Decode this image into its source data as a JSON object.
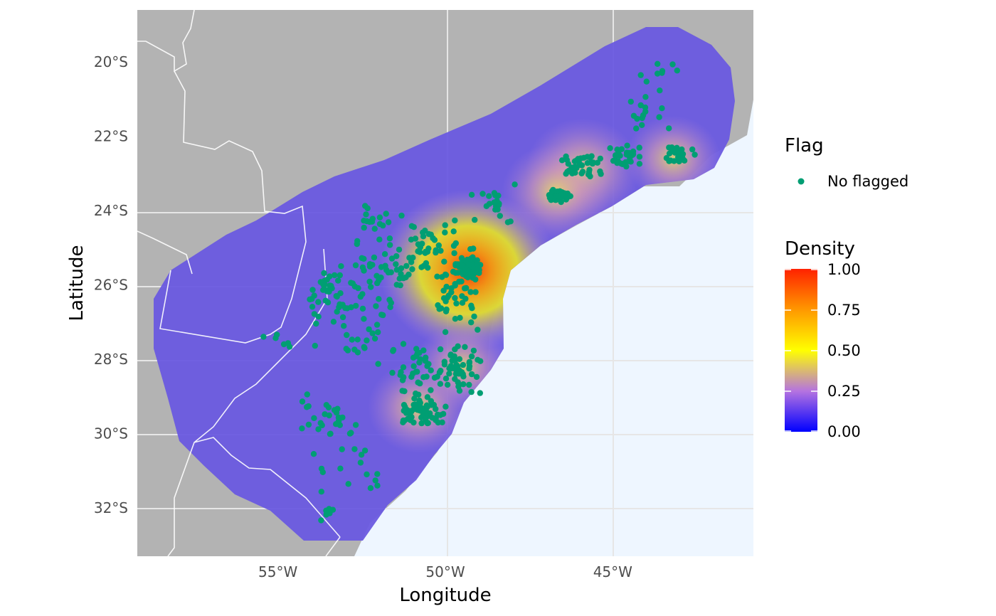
{
  "chart_data": {
    "type": "scatter",
    "xlabel": "Longitude",
    "ylabel": "Latitude",
    "x_ticks": [
      {
        "value": -55,
        "label": "55°W"
      },
      {
        "value": -50,
        "label": "50°W"
      },
      {
        "value": -45,
        "label": "45°W"
      }
    ],
    "y_ticks": [
      {
        "value": -20,
        "label": "20°S"
      },
      {
        "value": -22,
        "label": "22°S"
      },
      {
        "value": -24,
        "label": "24°S"
      },
      {
        "value": -26,
        "label": "26°S"
      },
      {
        "value": -28,
        "label": "28°S"
      },
      {
        "value": -30,
        "label": "30°S"
      },
      {
        "value": -32,
        "label": "32°S"
      }
    ],
    "xlim": [
      -59.2,
      -40.8
    ],
    "ylim": [
      -33.3,
      -18.6
    ],
    "legend_flag": {
      "title": "Flag",
      "entries": [
        {
          "label": "No flagged",
          "color": "#009E73"
        }
      ]
    },
    "legend_density": {
      "title": "Density",
      "ticks": [
        "1.00",
        "0.75",
        "0.50",
        "0.25",
        "0.00"
      ],
      "stops": [
        {
          "value": 0.0,
          "color": "#0000ff"
        },
        {
          "value": 0.25,
          "color": "#b573e0"
        },
        {
          "value": 0.5,
          "color": "#ffff00"
        },
        {
          "value": 0.75,
          "color": "#ff9800"
        },
        {
          "value": 1.0,
          "color": "#ff2200"
        }
      ]
    },
    "colors": {
      "land": "#b3b3b3",
      "ocean": "#eef6ff",
      "points": "#009E73",
      "borders": "#ffffff",
      "density_base": "#5b5be0"
    },
    "density_hotspots": [
      {
        "lon": -49.3,
        "lat": -25.6,
        "value": 0.95
      },
      {
        "lon": -50.8,
        "lat": -29.3,
        "value": 0.35
      },
      {
        "lon": -45.9,
        "lat": -22.9,
        "value": 0.45
      },
      {
        "lon": -46.7,
        "lat": -23.5,
        "value": 0.4
      },
      {
        "lon": -43.2,
        "lat": -22.6,
        "value": 0.3
      },
      {
        "lon": -49.5,
        "lat": -28.2,
        "value": 0.3
      }
    ],
    "point_clusters": [
      {
        "lon": -49.3,
        "lat": -25.55,
        "n": 120,
        "spread_lon": 0.25,
        "spread_lat": 0.2
      },
      {
        "lon": -49.6,
        "lat": -26.3,
        "n": 40,
        "spread_lon": 0.6,
        "spread_lat": 0.7
      },
      {
        "lon": -50.3,
        "lat": -25.0,
        "n": 40,
        "spread_lon": 0.9,
        "spread_lat": 0.5
      },
      {
        "lon": -50.7,
        "lat": -29.4,
        "n": 60,
        "spread_lon": 0.6,
        "spread_lat": 0.35
      },
      {
        "lon": -49.6,
        "lat": -28.3,
        "n": 45,
        "spread_lon": 0.5,
        "spread_lat": 0.5
      },
      {
        "lon": -50.9,
        "lat": -28.3,
        "n": 40,
        "spread_lon": 0.8,
        "spread_lat": 0.6
      },
      {
        "lon": -51.5,
        "lat": -25.6,
        "n": 40,
        "spread_lon": 1.0,
        "spread_lat": 0.4
      },
      {
        "lon": -52.5,
        "lat": -27.0,
        "n": 40,
        "spread_lon": 1.0,
        "spread_lat": 0.9
      },
      {
        "lon": -53.5,
        "lat": -26.2,
        "n": 40,
        "spread_lon": 0.6,
        "spread_lat": 0.6
      },
      {
        "lon": -53.2,
        "lat": -29.6,
        "n": 20,
        "spread_lon": 0.5,
        "spread_lat": 0.4
      },
      {
        "lon": -52.8,
        "lat": -31.0,
        "n": 15,
        "spread_lon": 0.6,
        "spread_lat": 0.7
      },
      {
        "lon": -46.6,
        "lat": -23.6,
        "n": 45,
        "spread_lon": 0.25,
        "spread_lat": 0.15
      },
      {
        "lon": -45.9,
        "lat": -22.8,
        "n": 40,
        "spread_lon": 0.6,
        "spread_lat": 0.3
      },
      {
        "lon": -44.6,
        "lat": -22.6,
        "n": 30,
        "spread_lon": 0.4,
        "spread_lat": 0.3
      },
      {
        "lon": -43.0,
        "lat": -22.5,
        "n": 25,
        "spread_lon": 0.4,
        "spread_lat": 0.2
      },
      {
        "lon": -44.0,
        "lat": -21.3,
        "n": 15,
        "spread_lon": 0.6,
        "spread_lat": 0.6
      },
      {
        "lon": -43.7,
        "lat": -20.2,
        "n": 8,
        "spread_lon": 0.4,
        "spread_lat": 0.3
      },
      {
        "lon": -48.6,
        "lat": -23.8,
        "n": 20,
        "spread_lon": 0.8,
        "spread_lat": 0.5
      },
      {
        "lon": -52.0,
        "lat": -24.3,
        "n": 20,
        "spread_lon": 0.6,
        "spread_lat": 0.5
      },
      {
        "lon": -55.2,
        "lat": -27.4,
        "n": 6,
        "spread_lon": 0.6,
        "spread_lat": 0.2
      },
      {
        "lon": -53.5,
        "lat": -32.1,
        "n": 6,
        "spread_lon": 0.2,
        "spread_lat": 0.2
      },
      {
        "lon": -54.3,
        "lat": -29.6,
        "n": 8,
        "spread_lon": 0.5,
        "spread_lat": 0.6
      }
    ]
  }
}
